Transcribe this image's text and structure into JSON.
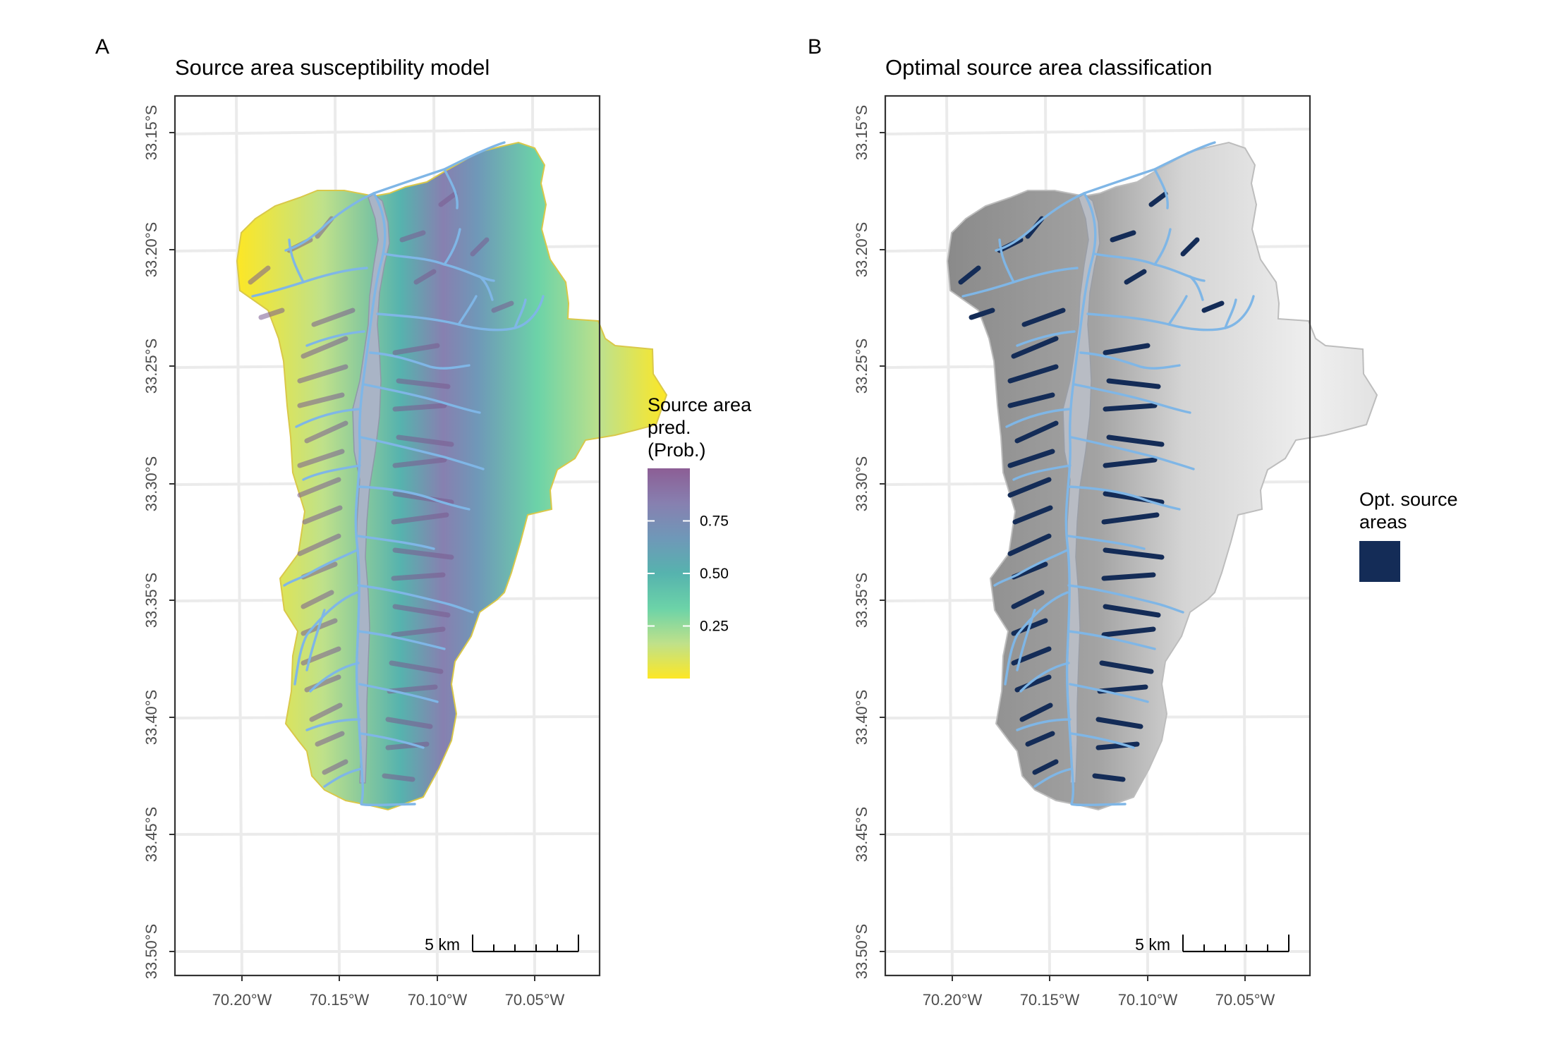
{
  "panels": [
    {
      "letter": "A",
      "title": "Source area susceptibility model",
      "legend": {
        "title_lines": [
          "Source area",
          "pred.",
          "(Prob.)"
        ],
        "ticks": [
          "0.75",
          "0.50",
          "0.25"
        ],
        "tick_values": [
          0.75,
          0.5,
          0.25
        ],
        "range": [
          0.0,
          1.0
        ],
        "colors": [
          "#fde725",
          "#bfe18a",
          "#6cd3a8",
          "#56b3ae",
          "#6f98b8",
          "#8780b0",
          "#8c5e95"
        ]
      },
      "scale_bar": "5 km"
    },
    {
      "letter": "B",
      "title": "Optimal source area classification",
      "legend": {
        "title_lines": [
          "Opt. source",
          "areas"
        ],
        "swatch_color": "#142c57"
      },
      "scale_bar": "5 km"
    }
  ],
  "axes": {
    "x_ticks": [
      "70.20°W",
      "70.15°W",
      "70.10°W",
      "70.05°W"
    ],
    "y_ticks": [
      "33.15°S",
      "33.20°S",
      "33.25°S",
      "33.30°S",
      "33.35°S",
      "33.40°S",
      "33.45°S",
      "33.50°S"
    ]
  },
  "colors": {
    "river": "#7fb6e6",
    "source_area": "#142c57",
    "valley_floor": "#a9b4c6",
    "hillshade_light": "#f0f0f0",
    "hillshade_dark": "#7a7a7a"
  }
}
